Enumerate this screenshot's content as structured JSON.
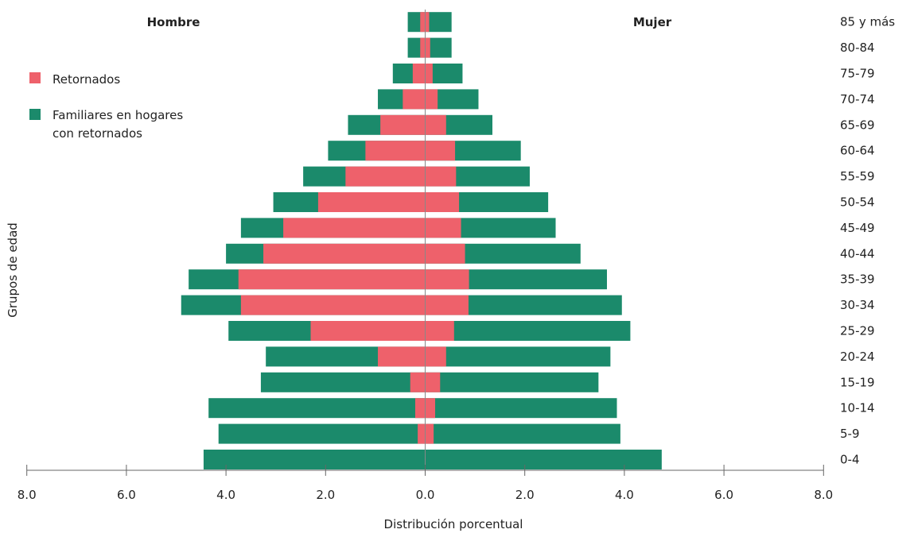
{
  "chart_data": {
    "type": "bar",
    "orientation": "horizontal-population-pyramid",
    "xlabel": "Distribución porcentual",
    "ylabel": "Grupos de edad",
    "side_labels": {
      "left": "Hombre",
      "right": "Mujer"
    },
    "xlim": [
      -8,
      8
    ],
    "x_ticks": [
      -8,
      -6,
      -4,
      -2,
      0,
      2,
      4,
      6,
      8
    ],
    "x_tick_labels": [
      "8.0",
      "6.0",
      "4.0",
      "2.0",
      "0.0",
      "2.0",
      "4.0",
      "6.0",
      "8.0"
    ],
    "categories": [
      "0-4",
      "5-9",
      "10-14",
      "15-19",
      "20-24",
      "25-29",
      "30-34",
      "35-39",
      "40-44",
      "45-49",
      "50-54",
      "55-59",
      "60-64",
      "65-69",
      "70-74",
      "75-79",
      "80-84",
      "85 y más"
    ],
    "legend": {
      "placement": "top-left",
      "items": [
        {
          "label": "Retornados",
          "color": "#ee616b"
        },
        {
          "label": "Familiares en hogares con retornados",
          "label_lines": [
            "Familiares en hogares",
            "con retornados"
          ],
          "color": "#1b8a6b"
        }
      ]
    },
    "series": [
      {
        "name": "Familiares en hogares con retornados",
        "color": "#1b8a6b",
        "layer": "back",
        "male": [
          4.45,
          4.15,
          4.35,
          3.3,
          3.2,
          3.95,
          4.9,
          4.75,
          4.0,
          3.7,
          3.05,
          2.45,
          1.95,
          1.55,
          0.95,
          0.65,
          0.35,
          0.35
        ],
        "female": [
          4.75,
          3.92,
          3.85,
          3.48,
          3.72,
          4.12,
          3.95,
          3.65,
          3.12,
          2.62,
          2.47,
          2.1,
          1.92,
          1.35,
          1.07,
          0.75,
          0.53,
          0.53
        ]
      },
      {
        "name": "Retornados",
        "color": "#ee616b",
        "layer": "front",
        "male": [
          0.0,
          0.15,
          0.2,
          0.3,
          0.95,
          2.3,
          3.7,
          3.75,
          3.25,
          2.85,
          2.15,
          1.6,
          1.2,
          0.9,
          0.45,
          0.25,
          0.1,
          0.1
        ],
        "female": [
          0.0,
          0.17,
          0.2,
          0.3,
          0.42,
          0.58,
          0.87,
          0.88,
          0.8,
          0.72,
          0.68,
          0.62,
          0.6,
          0.42,
          0.25,
          0.15,
          0.1,
          0.08
        ]
      }
    ]
  }
}
